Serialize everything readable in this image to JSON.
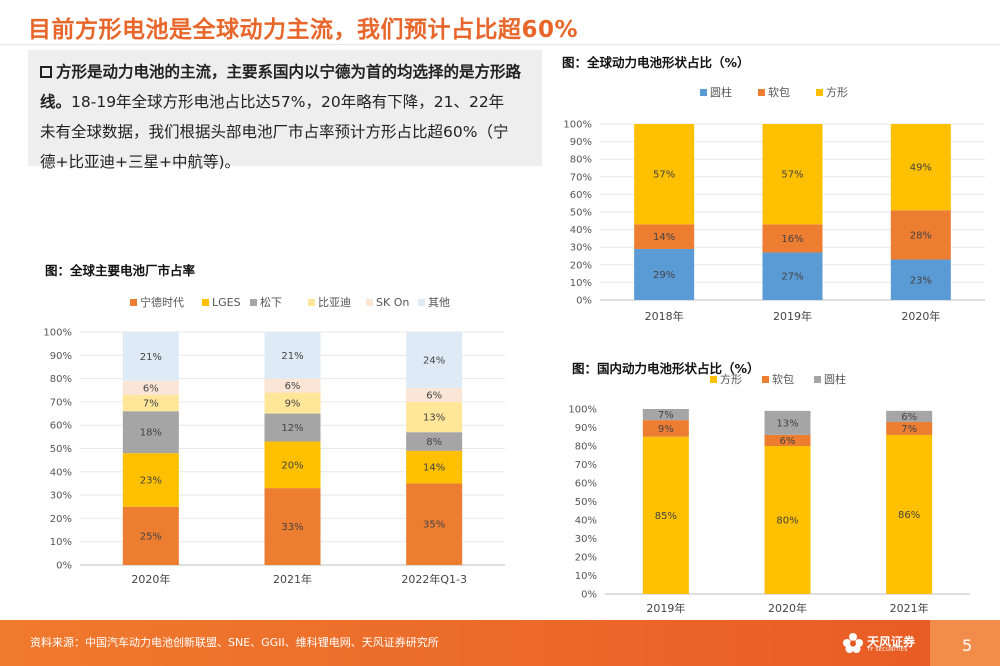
{
  "title": "目前方形电池是全球动力主流，我们预计占比超60%",
  "text": {
    "bold_part": "方形是动力电池的主流，主要系国内以宁德为首的均选择的是方形路线。",
    "normal_part": "18-19年全球方形电池占比达57%，20年略有下降，21、22年未有全球数据，我们根据头部电池厂市占率预计方形占比超60%（宁德+比亚迪+三星+中航等)。",
    "line1": "方形是动力电池的主流，主要系国内以宁德为首的均选择的是方形路",
    "line2_bold": "线。",
    "line2_normal": "18-19年全球方形电池占比达57%，20年略有下降，21、22年",
    "line3": "未有全球数据，我们根据头部电池厂市占率预计方形占比超60%（宁",
    "line4": "德+比亚迪+三星+中航等)。"
  },
  "figures": {
    "global_share_label": "图：全球动力电池形状占比（%）",
    "makers_label": "图：全球主要电池厂市占率",
    "domestic_share_label": "图：国内动力电池形状占比（%）"
  },
  "footer": {
    "source": "资料来源：中国汽车动力电池创新联盟、SNE、GGII、维科锂电网、天风证券研究所",
    "logo_text": "天风证券",
    "logo_sub": "TF SECURITIES",
    "page": "5"
  },
  "colors": {
    "accent": "#e8662a",
    "blue": "#5b9bd5",
    "orange": "#ed7d31",
    "gold": "#ffc000",
    "gray": "#a5a5a5",
    "lightgold": "#ffe699",
    "pink": "#fbe5d6",
    "lightblue": "#deebf7"
  },
  "chart_data": [
    {
      "id": "global",
      "type": "bar",
      "stacked": true,
      "categories": [
        "2018年",
        "2019年",
        "2020年"
      ],
      "yticks": [
        "0%",
        "10%",
        "20%",
        "30%",
        "40%",
        "50%",
        "60%",
        "70%",
        "80%",
        "90%",
        "100%"
      ],
      "ylim": [
        0,
        100
      ],
      "legend_position": "top",
      "series": [
        {
          "name": "圆柱",
          "color": "#5b9bd5",
          "values": [
            29,
            27,
            23
          ],
          "labels": [
            "29%",
            "27%",
            "23%"
          ]
        },
        {
          "name": "软包",
          "color": "#ed7d31",
          "values": [
            14,
            16,
            28
          ],
          "labels": [
            "14%",
            "16%",
            "28%"
          ]
        },
        {
          "name": "方形",
          "color": "#ffc000",
          "values": [
            57,
            57,
            49
          ],
          "labels": [
            "57%",
            "57%",
            "49%"
          ]
        }
      ]
    },
    {
      "id": "makers",
      "type": "bar",
      "stacked": true,
      "categories": [
        "2020年",
        "2021年",
        "2022年Q1-3"
      ],
      "yticks": [
        "0%",
        "10%",
        "20%",
        "30%",
        "40%",
        "50%",
        "60%",
        "70%",
        "80%",
        "90%",
        "100%"
      ],
      "ylim": [
        0,
        100
      ],
      "legend_position": "top",
      "series": [
        {
          "name": "宁德时代",
          "color": "#ed7d31",
          "values": [
            25,
            33,
            35
          ],
          "labels": [
            "25%",
            "33%",
            "35%"
          ]
        },
        {
          "name": "LGES",
          "color": "#ffc000",
          "values": [
            23,
            20,
            14
          ],
          "labels": [
            "23%",
            "20%",
            "14%"
          ]
        },
        {
          "name": "松下",
          "color": "#a5a5a5",
          "values": [
            18,
            12,
            8
          ],
          "labels": [
            "18%",
            "12%",
            "8%"
          ]
        },
        {
          "name": "比亚迪",
          "color": "#ffe699",
          "values": [
            7,
            9,
            13
          ],
          "labels": [
            "7%",
            "9%",
            "13%"
          ]
        },
        {
          "name": "SK On",
          "color": "#fbe5d6",
          "values": [
            6,
            6,
            6
          ],
          "labels": [
            "6%",
            "6%",
            "6%"
          ]
        },
        {
          "name": "其他",
          "color": "#deebf7",
          "values": [
            21,
            21,
            24
          ],
          "labels": [
            "21%",
            "21%",
            "24%"
          ]
        }
      ]
    },
    {
      "id": "domestic",
      "type": "bar",
      "stacked": true,
      "categories": [
        "2019年",
        "2020年",
        "2021年"
      ],
      "yticks": [
        "0%",
        "10%",
        "20%",
        "30%",
        "40%",
        "50%",
        "60%",
        "70%",
        "80%",
        "90%",
        "100%"
      ],
      "ylim": [
        0,
        100
      ],
      "legend_position": "top",
      "series": [
        {
          "name": "方形",
          "color": "#ffc000",
          "values": [
            85,
            80,
            86
          ],
          "labels": [
            "85%",
            "80%",
            "86%"
          ]
        },
        {
          "name": "软包",
          "color": "#ed7d31",
          "values": [
            9,
            6,
            7
          ],
          "labels": [
            "9%",
            "6%",
            "7%"
          ]
        },
        {
          "name": "圆柱",
          "color": "#a5a5a5",
          "values": [
            7,
            13,
            6
          ],
          "labels": [
            "7%",
            "13%",
            "6%"
          ]
        }
      ]
    }
  ]
}
